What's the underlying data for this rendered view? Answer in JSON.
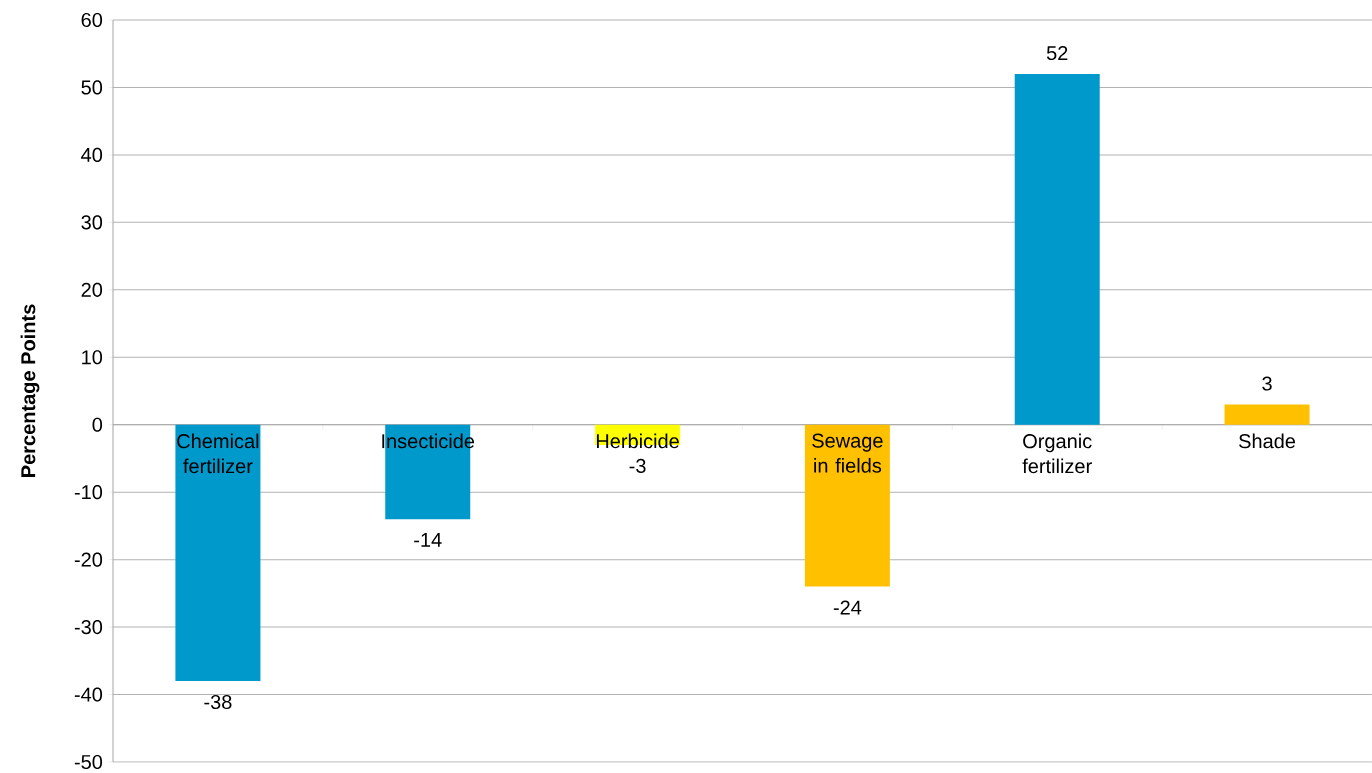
{
  "chart_data": {
    "type": "bar",
    "ylabel": "**Percentage Points**",
    "categories": [
      "Chemical fertilizer",
      "Insecticide",
      "Herbicide",
      "Sewage in fields",
      "Organic fertilizer",
      "Shade"
    ],
    "values": [
      -38,
      -14,
      -3,
      -24,
      52,
      3
    ],
    "colors": [
      "#0099cc",
      "#0099cc",
      "#ffff00",
      "#ffc000",
      "#0099cc",
      "#ffc000"
    ],
    "ylim": [
      -50,
      60
    ],
    "yticks": [
      -50,
      -40,
      -30,
      -20,
      -10,
      0,
      10,
      20,
      30,
      40,
      50,
      60
    ],
    "grid": "y",
    "data_labels": true
  }
}
